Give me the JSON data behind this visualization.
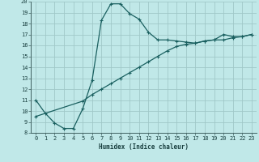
{
  "xlabel": "Humidex (Indice chaleur)",
  "background_color": "#c0e8e8",
  "grid_color": "#a0c8c8",
  "line_color": "#1a6060",
  "xlim": [
    -0.5,
    23.5
  ],
  "ylim": [
    8,
    20
  ],
  "curve1_x": [
    0,
    1,
    2,
    3,
    4,
    5,
    6,
    7,
    8,
    9,
    10,
    11,
    12,
    13,
    14,
    15,
    16,
    17,
    18,
    19,
    20,
    21,
    22,
    23
  ],
  "curve1_y": [
    11.0,
    9.8,
    8.9,
    8.4,
    8.4,
    10.2,
    12.8,
    18.3,
    19.8,
    19.8,
    18.9,
    18.4,
    17.2,
    16.5,
    16.5,
    16.4,
    16.3,
    16.2,
    16.4,
    16.5,
    17.0,
    16.8,
    16.8,
    17.0
  ],
  "curve2_x": [
    0,
    5,
    6,
    7,
    8,
    9,
    10,
    11,
    12,
    13,
    14,
    15,
    16,
    17,
    18,
    19,
    20,
    21,
    22,
    23
  ],
  "curve2_y": [
    9.5,
    10.9,
    11.5,
    12.0,
    12.5,
    13.0,
    13.5,
    14.0,
    14.5,
    15.0,
    15.5,
    15.9,
    16.1,
    16.2,
    16.4,
    16.5,
    16.5,
    16.7,
    16.8,
    17.0
  ]
}
